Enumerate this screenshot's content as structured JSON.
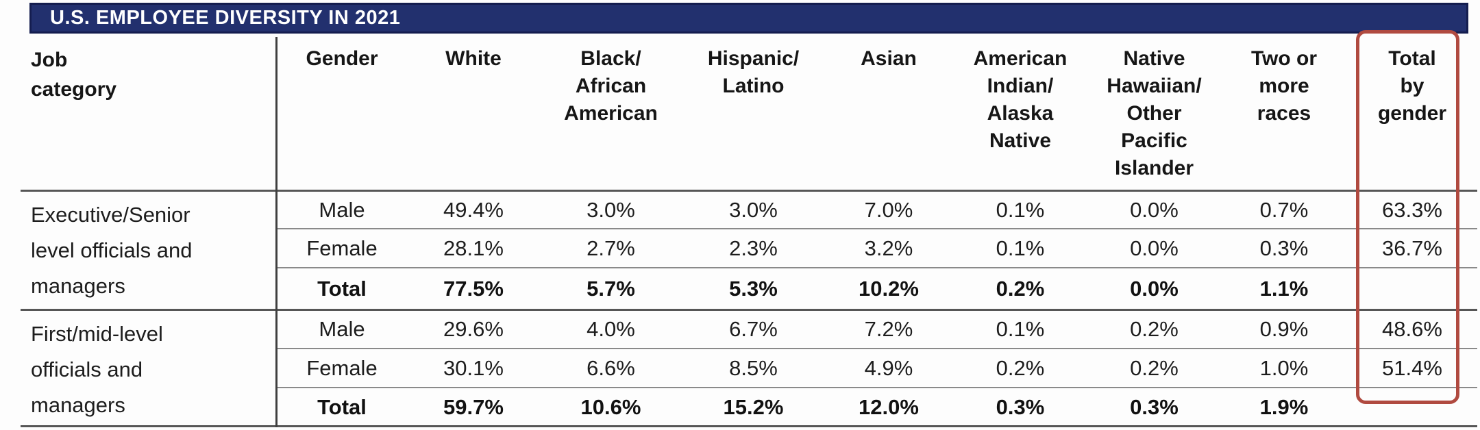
{
  "title": "U.S. EMPLOYEE DIVERSITY IN 2021",
  "columns": {
    "job": "Job\ncategory",
    "gender": "Gender",
    "white": "White",
    "black": "Black/\nAfrican\nAmerican",
    "hispanic": "Hispanic/\nLatino",
    "asian": "Asian",
    "american_indian": "American\nIndian/\nAlaska\nNative",
    "native_hawaiian": "Native\nHawaiian/\nOther\nPacific\nIslander",
    "two_or_more": "Two or\nmore\nraces",
    "total_by_gender": "Total\nby\ngender"
  },
  "groups": [
    {
      "job_category": "Executive/Senior\nlevel officials and\nmanagers",
      "rows": [
        {
          "gender": "Male",
          "white": "49.4%",
          "black": "3.0%",
          "hispanic": "3.0%",
          "asian": "7.0%",
          "american_indian": "0.1%",
          "native_hawaiian": "0.0%",
          "two_or_more": "0.7%",
          "total_by_gender": "63.3%"
        },
        {
          "gender": "Female",
          "white": "28.1%",
          "black": "2.7%",
          "hispanic": "2.3%",
          "asian": "3.2%",
          "american_indian": "0.1%",
          "native_hawaiian": "0.0%",
          "two_or_more": "0.3%",
          "total_by_gender": "36.7%"
        },
        {
          "gender": "Total",
          "white": "77.5%",
          "black": "5.7%",
          "hispanic": "5.3%",
          "asian": "10.2%",
          "american_indian": "0.2%",
          "native_hawaiian": "0.0%",
          "two_or_more": "1.1%",
          "total_by_gender": ""
        }
      ]
    },
    {
      "job_category": "First/mid-level\nofficials and\nmanagers",
      "rows": [
        {
          "gender": "Male",
          "white": "29.6%",
          "black": "4.0%",
          "hispanic": "6.7%",
          "asian": "7.2%",
          "american_indian": "0.1%",
          "native_hawaiian": "0.2%",
          "two_or_more": "0.9%",
          "total_by_gender": "48.6%"
        },
        {
          "gender": "Female",
          "white": "30.1%",
          "black": "6.6%",
          "hispanic": "8.5%",
          "asian": "4.9%",
          "american_indian": "0.2%",
          "native_hawaiian": "0.2%",
          "two_or_more": "1.0%",
          "total_by_gender": "51.4%"
        },
        {
          "gender": "Total",
          "white": "59.7%",
          "black": "10.6%",
          "hispanic": "15.2%",
          "asian": "12.0%",
          "american_indian": "0.3%",
          "native_hawaiian": "0.3%",
          "two_or_more": "1.9%",
          "total_by_gender": ""
        }
      ]
    }
  ],
  "highlight": {
    "highlighted_column": "Total by gender",
    "box_color": "#b04a40"
  },
  "colors": {
    "title_bar_bg": "#22306e",
    "title_bar_border": "#141d4f",
    "title_text": "#ffffff",
    "rule_major": "#565656",
    "rule_minor": "#8a8a8a",
    "body_text": "#1d1d1d"
  },
  "chart_data": {
    "type": "table",
    "title": "U.S. EMPLOYEE DIVERSITY IN 2021",
    "columns": [
      "Job category",
      "Gender",
      "White",
      "Black/African American",
      "Hispanic/Latino",
      "Asian",
      "American Indian/Alaska Native",
      "Native Hawaiian/Other Pacific Islander",
      "Two or more races",
      "Total by gender"
    ],
    "rows": [
      [
        "Executive/Senior level officials and managers",
        "Male",
        "49.4%",
        "3.0%",
        "3.0%",
        "7.0%",
        "0.1%",
        "0.0%",
        "0.7%",
        "63.3%"
      ],
      [
        "Executive/Senior level officials and managers",
        "Female",
        "28.1%",
        "2.7%",
        "2.3%",
        "3.2%",
        "0.1%",
        "0.0%",
        "0.3%",
        "36.7%"
      ],
      [
        "Executive/Senior level officials and managers",
        "Total",
        "77.5%",
        "5.7%",
        "5.3%",
        "10.2%",
        "0.2%",
        "0.0%",
        "1.1%",
        ""
      ],
      [
        "First/mid-level officials and managers",
        "Male",
        "29.6%",
        "4.0%",
        "6.7%",
        "7.2%",
        "0.1%",
        "0.2%",
        "0.9%",
        "48.6%"
      ],
      [
        "First/mid-level officials and managers",
        "Female",
        "30.1%",
        "6.6%",
        "8.5%",
        "4.9%",
        "0.2%",
        "0.2%",
        "1.0%",
        "51.4%"
      ],
      [
        "First/mid-level officials and managers",
        "Total",
        "59.7%",
        "10.6%",
        "15.2%",
        "12.0%",
        "0.3%",
        "0.3%",
        "1.9%",
        ""
      ]
    ],
    "annotations": [
      "Red box highlights the Total by gender column"
    ]
  }
}
